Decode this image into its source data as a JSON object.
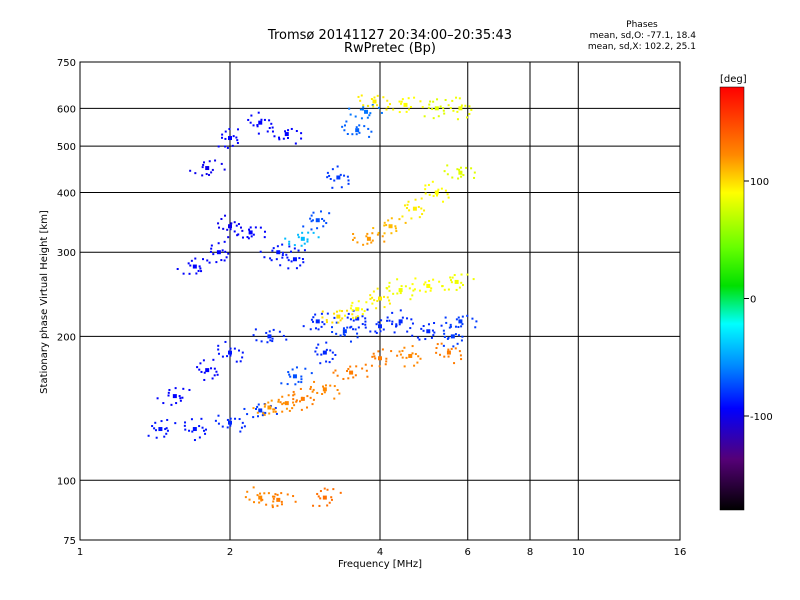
{
  "chart_data": {
    "type": "scatter",
    "title": "Tromsø 20141127 20:34:00–20:35:43",
    "subtitle": "RwPretec (Bp)",
    "xlabel": "Frequency [MHz]",
    "ylabel": "Stationary phase Virtual Height [km]",
    "x_scale": "log",
    "y_scale": "log",
    "xlim": [
      1,
      16
    ],
    "ylim": [
      75,
      750
    ],
    "x_ticks": [
      "1",
      "2",
      "4",
      "6",
      "8",
      "10",
      "16"
    ],
    "y_ticks": [
      "75",
      "100",
      "200",
      "300",
      "400",
      "500",
      "600",
      "750"
    ],
    "grid": true,
    "colorbar": {
      "label": "[deg]",
      "ticks": [
        "100",
        "0",
        "-100"
      ],
      "range": [
        -180,
        180
      ]
    },
    "phase_stats": {
      "header": "Phases",
      "o_line": "mean, sd,O: -77.1, 18.4",
      "x_line": "mean, sd,X: 102.2, 25.1"
    },
    "series": [
      {
        "kind": "band",
        "points": [
          {
            "x": 1.45,
            "y": 128,
            "phase": -105
          },
          {
            "x": 1.7,
            "y": 128,
            "phase": -105
          },
          {
            "x": 2.0,
            "y": 132,
            "phase": -100
          },
          {
            "x": 2.3,
            "y": 140,
            "phase": -95
          },
          {
            "x": 2.7,
            "y": 165,
            "phase": -90
          },
          {
            "x": 3.1,
            "y": 185,
            "phase": -100
          },
          {
            "x": 3.4,
            "y": 205,
            "phase": -95
          },
          {
            "x": 4.0,
            "y": 210,
            "phase": -100
          },
          {
            "x": 5.0,
            "y": 205,
            "phase": -100
          },
          {
            "x": 5.6,
            "y": 200,
            "phase": -95
          }
        ]
      },
      {
        "kind": "band",
        "points": [
          {
            "x": 1.55,
            "y": 150,
            "phase": -110
          },
          {
            "x": 1.8,
            "y": 170,
            "phase": -110
          },
          {
            "x": 2.0,
            "y": 185,
            "phase": -105
          },
          {
            "x": 2.4,
            "y": 200,
            "phase": -100
          },
          {
            "x": 3.0,
            "y": 215,
            "phase": -100
          },
          {
            "x": 3.6,
            "y": 218,
            "phase": -100
          },
          {
            "x": 4.4,
            "y": 215,
            "phase": -100
          },
          {
            "x": 5.8,
            "y": 215,
            "phase": -95
          }
        ]
      },
      {
        "kind": "band",
        "points": [
          {
            "x": 1.7,
            "y": 280,
            "phase": -110
          },
          {
            "x": 1.9,
            "y": 300,
            "phase": -110
          },
          {
            "x": 2.0,
            "y": 340,
            "phase": -115
          },
          {
            "x": 2.2,
            "y": 330,
            "phase": -110
          },
          {
            "x": 2.5,
            "y": 300,
            "phase": -105
          },
          {
            "x": 2.7,
            "y": 290,
            "phase": -105
          }
        ]
      },
      {
        "kind": "band",
        "points": [
          {
            "x": 1.8,
            "y": 450,
            "phase": -115
          },
          {
            "x": 2.0,
            "y": 520,
            "phase": -110
          },
          {
            "x": 2.3,
            "y": 560,
            "phase": -110
          },
          {
            "x": 2.6,
            "y": 530,
            "phase": -110
          },
          {
            "x": 2.8,
            "y": 320,
            "phase": -60
          },
          {
            "x": 3.0,
            "y": 350,
            "phase": -90
          },
          {
            "x": 3.3,
            "y": 430,
            "phase": -95
          },
          {
            "x": 3.6,
            "y": 540,
            "phase": -85
          },
          {
            "x": 3.75,
            "y": 590,
            "phase": -80
          }
        ]
      },
      {
        "kind": "band",
        "points": [
          {
            "x": 2.4,
            "y": 142,
            "phase": 120
          },
          {
            "x": 2.6,
            "y": 145,
            "phase": 125
          },
          {
            "x": 2.8,
            "y": 148,
            "phase": 130
          },
          {
            "x": 3.1,
            "y": 155,
            "phase": 125
          },
          {
            "x": 3.5,
            "y": 168,
            "phase": 130
          },
          {
            "x": 4.0,
            "y": 180,
            "phase": 130
          },
          {
            "x": 4.6,
            "y": 182,
            "phase": 125
          },
          {
            "x": 5.5,
            "y": 185,
            "phase": 130
          }
        ]
      },
      {
        "kind": "band",
        "points": [
          {
            "x": 3.3,
            "y": 220,
            "phase": 100
          },
          {
            "x": 3.6,
            "y": 228,
            "phase": 90
          },
          {
            "x": 4.0,
            "y": 240,
            "phase": 95
          },
          {
            "x": 4.4,
            "y": 250,
            "phase": 85
          },
          {
            "x": 5.0,
            "y": 255,
            "phase": 90
          },
          {
            "x": 5.7,
            "y": 260,
            "phase": 85
          }
        ]
      },
      {
        "kind": "band",
        "points": [
          {
            "x": 3.8,
            "y": 320,
            "phase": 120
          },
          {
            "x": 4.2,
            "y": 340,
            "phase": 110
          },
          {
            "x": 4.7,
            "y": 370,
            "phase": 95
          },
          {
            "x": 5.2,
            "y": 400,
            "phase": 90
          },
          {
            "x": 5.8,
            "y": 440,
            "phase": 80
          }
        ]
      },
      {
        "kind": "band",
        "points": [
          {
            "x": 3.9,
            "y": 620,
            "phase": 95
          },
          {
            "x": 4.5,
            "y": 610,
            "phase": 90
          },
          {
            "x": 5.2,
            "y": 600,
            "phase": 80
          },
          {
            "x": 5.8,
            "y": 600,
            "phase": 85
          }
        ]
      },
      {
        "kind": "band",
        "points": [
          {
            "x": 2.3,
            "y": 92,
            "phase": 125
          },
          {
            "x": 2.5,
            "y": 91,
            "phase": 130
          },
          {
            "x": 3.1,
            "y": 92,
            "phase": 135
          }
        ]
      }
    ]
  }
}
